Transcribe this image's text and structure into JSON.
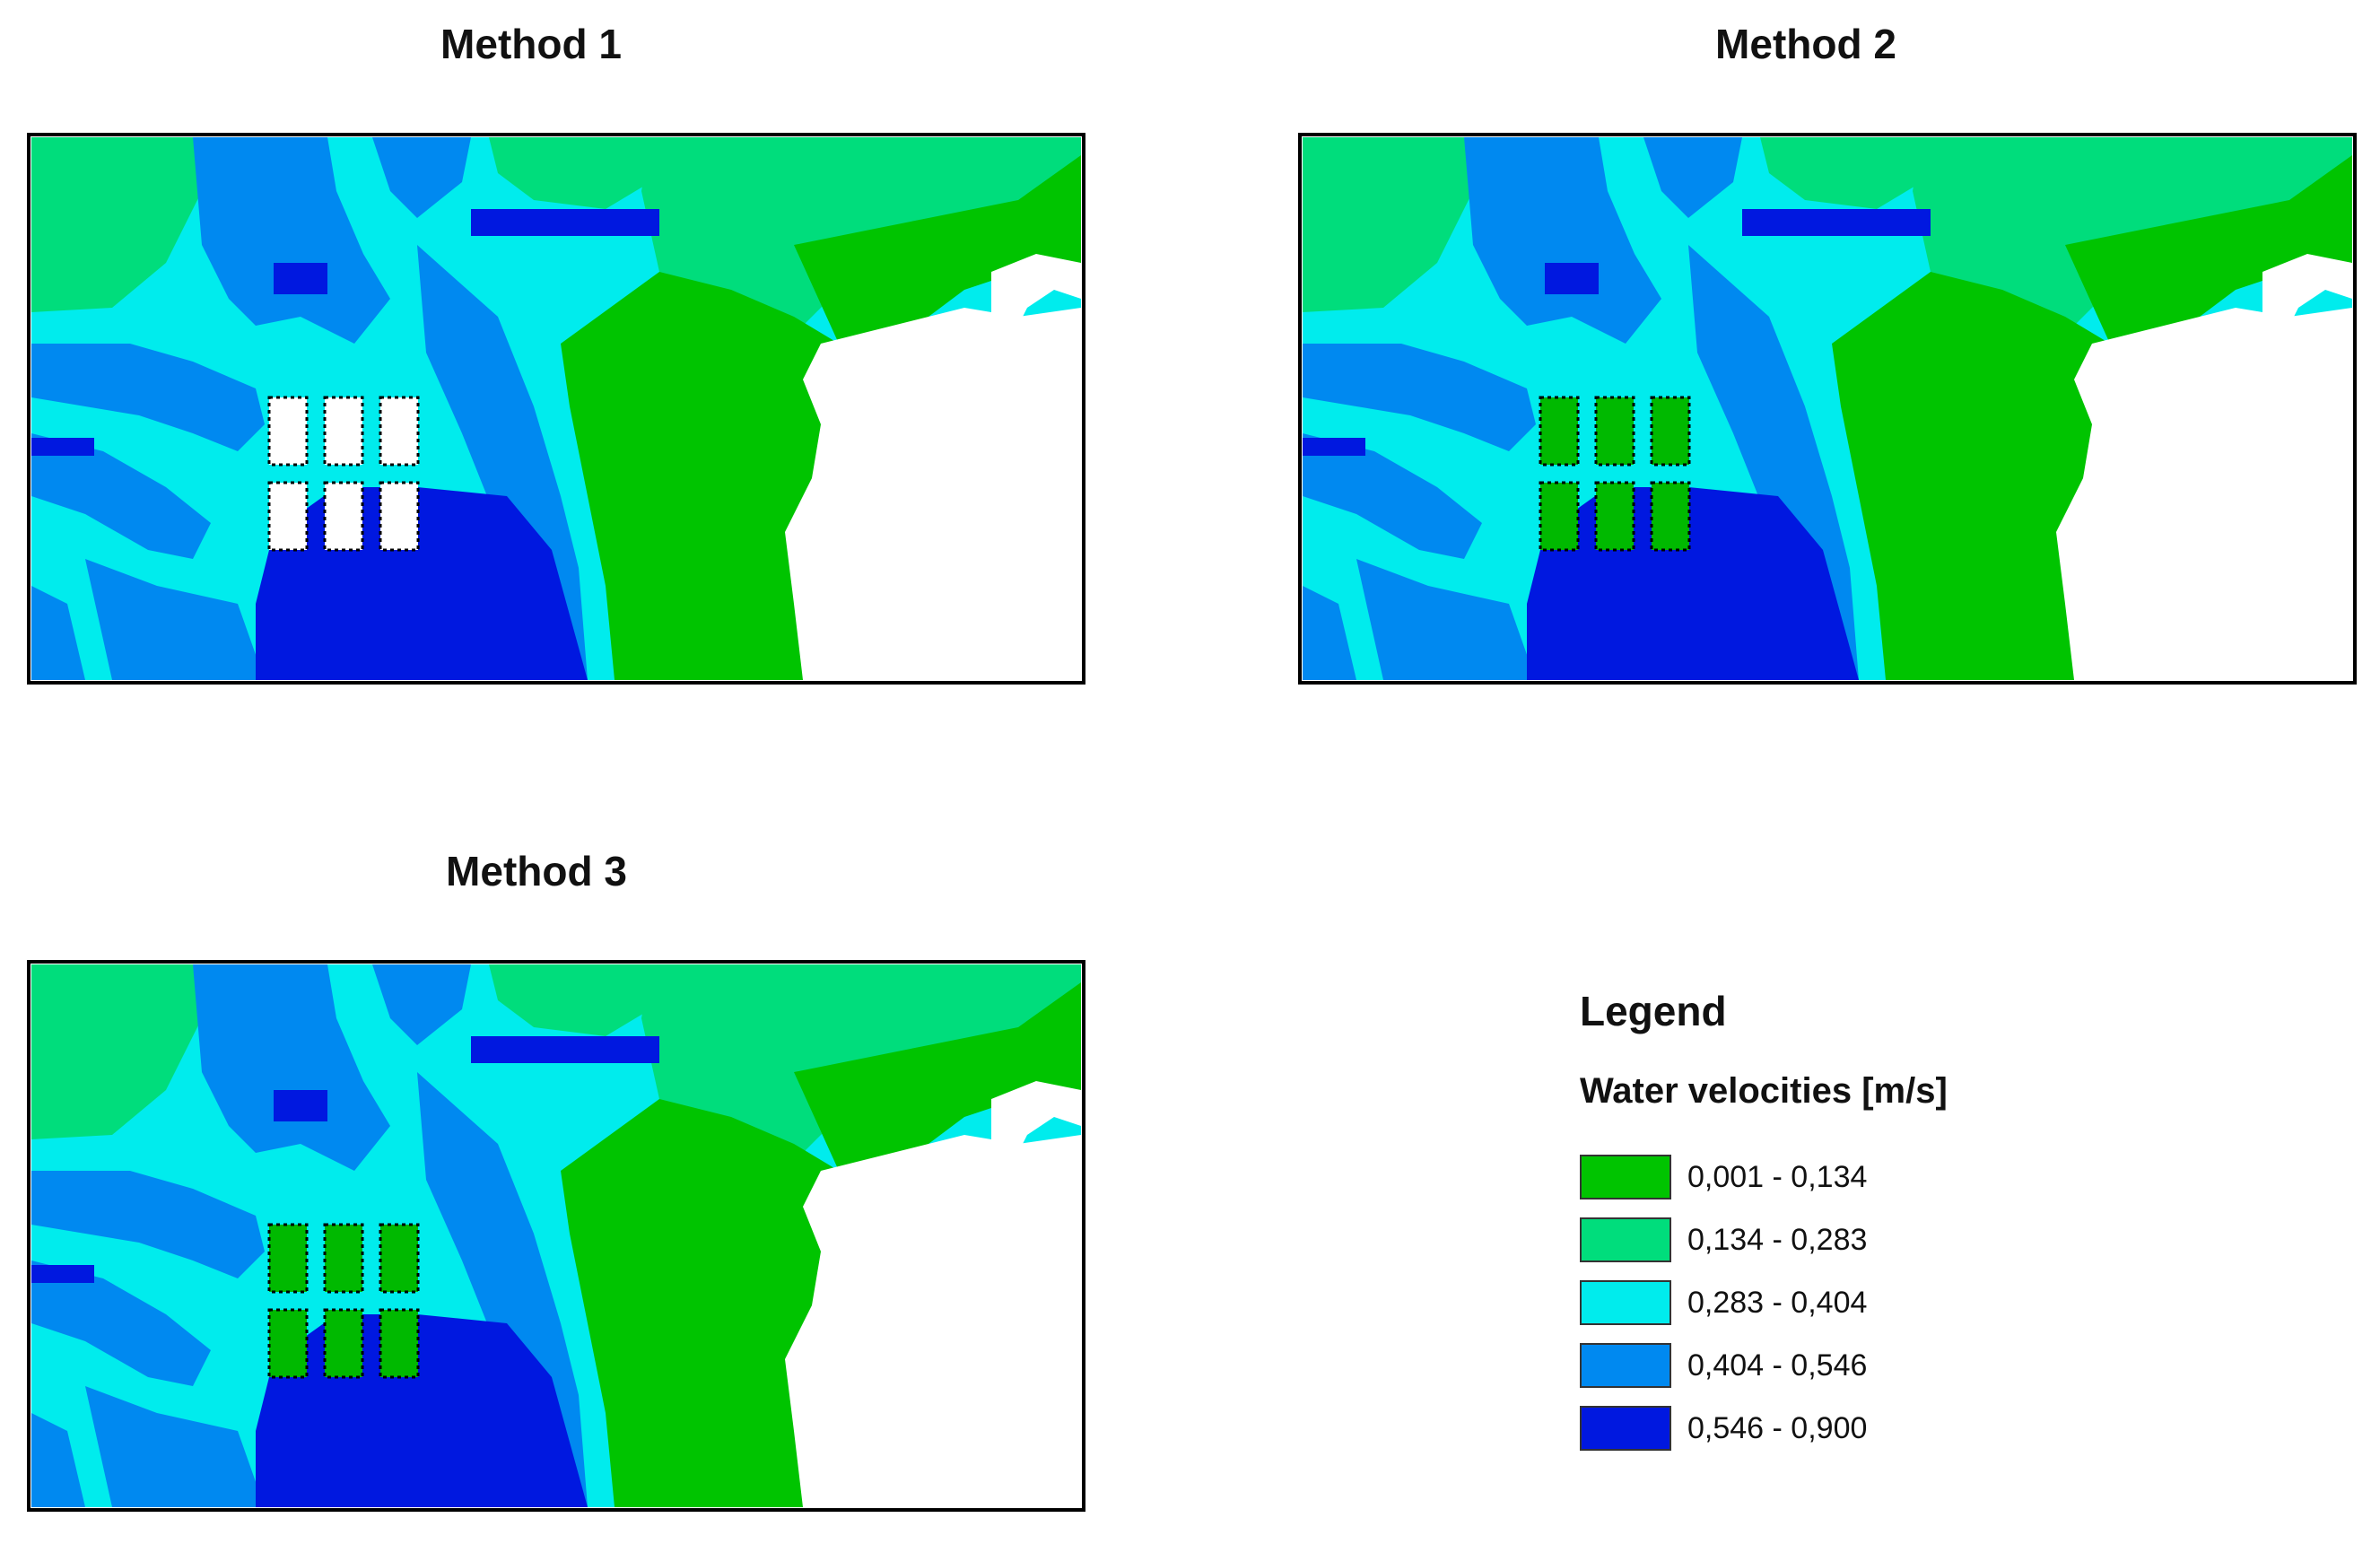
{
  "panels": [
    {
      "title": "Method 1",
      "structure_fill": "#ffffff"
    },
    {
      "title": "Method 2",
      "structure_fill": "#00b900"
    },
    {
      "title": "Method 3",
      "structure_fill": "#00b900"
    }
  ],
  "legend": {
    "title": "Legend",
    "subtitle": "Water velocities [m/s]",
    "classes": [
      {
        "label": "0,001 - 0,134",
        "color": "#00c400"
      },
      {
        "label": "0,134 - 0,283",
        "color": "#00dd7c"
      },
      {
        "label": "0,283 - 0,404",
        "color": "#00eced"
      },
      {
        "label": "0,404 - 0,546",
        "color": "#0089f0"
      },
      {
        "label": "0,546 - 0,900",
        "color": "#0018e0"
      }
    ]
  }
}
